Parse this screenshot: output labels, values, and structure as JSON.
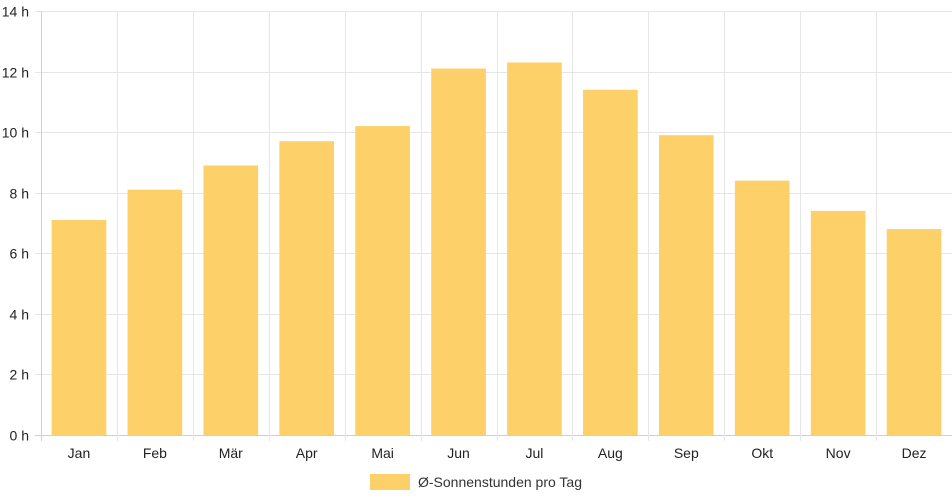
{
  "chart_data": {
    "type": "bar",
    "categories": [
      "Jan",
      "Feb",
      "Mär",
      "Apr",
      "Mai",
      "Jun",
      "Jul",
      "Aug",
      "Sep",
      "Okt",
      "Nov",
      "Dez"
    ],
    "series": [
      {
        "name": "Ø-Sonnenstunden pro Tag",
        "values": [
          7.1,
          8.1,
          8.9,
          9.7,
          10.2,
          12.1,
          12.3,
          11.4,
          9.9,
          8.4,
          7.4,
          6.8
        ],
        "color": "#fdd069"
      }
    ],
    "title": "",
    "xlabel": "",
    "ylabel": "",
    "ylim": [
      0,
      14
    ],
    "yticks": [
      0,
      2,
      4,
      6,
      8,
      10,
      12,
      14
    ],
    "y_unit_suffix": " h",
    "grid": true,
    "legend_position": "bottom"
  }
}
